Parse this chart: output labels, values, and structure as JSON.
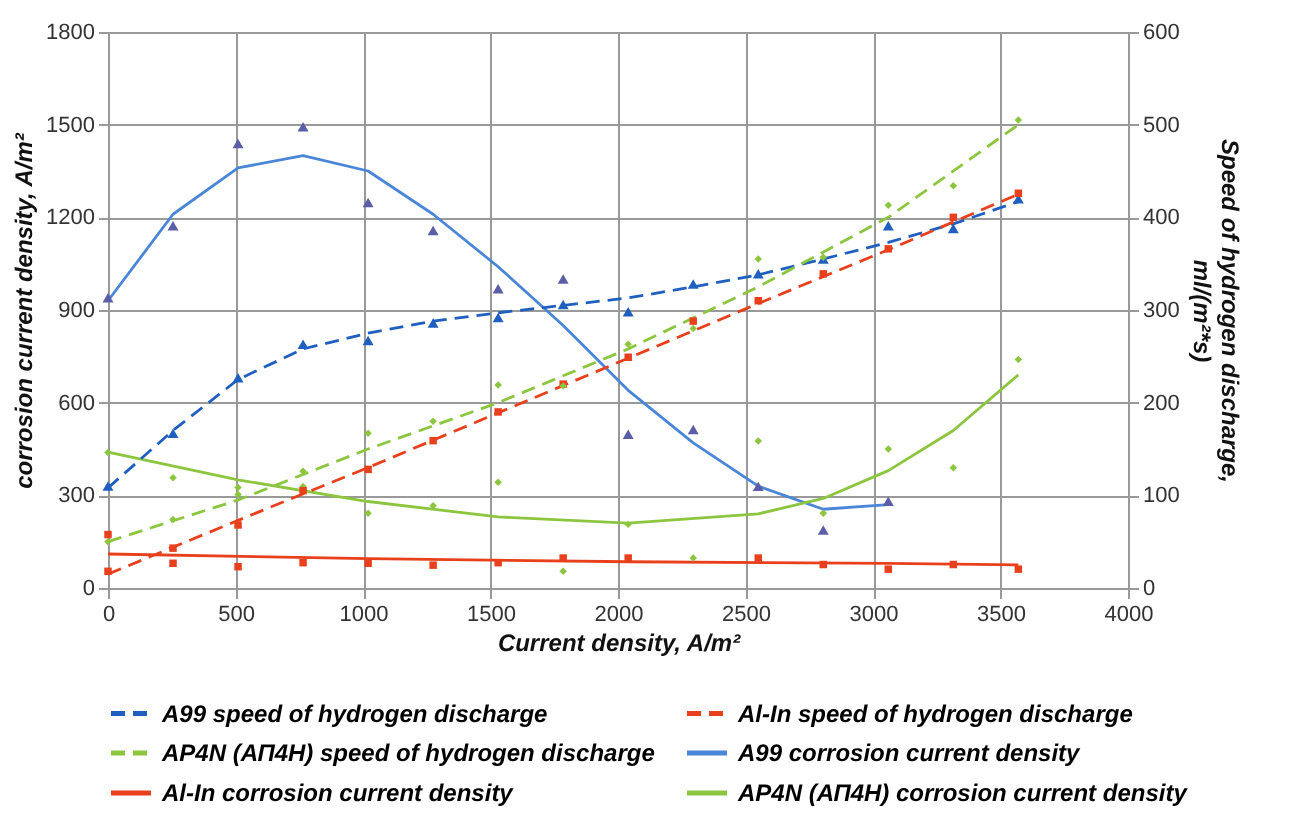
{
  "chart_data": {
    "type": "line",
    "xlabel": "Current density, A/m²",
    "ylabel": "corrosion current density, A/m²",
    "y2label": "Speed of hydrogen discharge,\nml/(m²*s)",
    "xlim": [
      0,
      4000
    ],
    "xticks": [
      0,
      500,
      1000,
      1500,
      2000,
      2500,
      3000,
      3500,
      4000
    ],
    "ylim": [
      0,
      1800
    ],
    "yticks": [
      0,
      300,
      600,
      900,
      1200,
      1500,
      1800
    ],
    "y2lim": [
      0,
      600
    ],
    "y2ticks": [
      0,
      100,
      200,
      300,
      400,
      500,
      600
    ],
    "grid": true,
    "legend": "bottom",
    "series": [
      {
        "name": "A99 speed of hydrogen discharge",
        "axis": "y2",
        "line_style": "dashed",
        "color": "#1f5fbf",
        "x": [
          0,
          255,
          510,
          765,
          1020,
          1275,
          1530,
          1785,
          2040,
          2295,
          2550,
          2805,
          3060,
          3315,
          3570
        ],
        "values": [
          108,
          170,
          225,
          258,
          275,
          288,
          297,
          305,
          313,
          325,
          338,
          355,
          373,
          393,
          417
        ]
      },
      {
        "name": "Al-In speed of hydrogen discharge",
        "axis": "y2",
        "line_style": "dashed",
        "color": "#e8401c",
        "x": [
          0,
          510,
          1020,
          1530,
          2040,
          2550,
          3060,
          3570
        ],
        "values": [
          15,
          73,
          130,
          189,
          248,
          307,
          365,
          425
        ]
      },
      {
        "name": "AP4N (АП4Н) speed of hydrogen discharge",
        "axis": "y2",
        "line_style": "dashed",
        "color": "#8cc63f",
        "x": [
          0,
          510,
          1020,
          1530,
          2040,
          2550,
          3060,
          3570
        ],
        "values": [
          50,
          95,
          150,
          200,
          258,
          325,
          400,
          500
        ]
      },
      {
        "name": "A99 corrosion current density",
        "axis": "y",
        "line_style": "solid",
        "color": "#4a86d8",
        "x": [
          0,
          255,
          510,
          765,
          1020,
          1275,
          1530,
          1785,
          2040,
          2295,
          2550,
          2805,
          3060
        ],
        "values": [
          930,
          1210,
          1360,
          1400,
          1350,
          1210,
          1040,
          850,
          640,
          470,
          330,
          255,
          270
        ]
      },
      {
        "name": "Al-In corrosion current density",
        "axis": "y",
        "line_style": "solid",
        "color": "#e8401c",
        "x": [
          0,
          1020,
          2040,
          3060,
          3570
        ],
        "values": [
          110,
          95,
          85,
          80,
          75
        ]
      },
      {
        "name": "AP4N (АП4Н) corrosion current density",
        "axis": "y",
        "line_style": "solid",
        "color": "#8cc63f",
        "x": [
          0,
          510,
          1020,
          1530,
          2040,
          2550,
          2805,
          3060,
          3315,
          3570
        ],
        "values": [
          440,
          350,
          280,
          230,
          210,
          240,
          290,
          380,
          510,
          690
        ]
      },
      {
        "type": "scatter",
        "axis": "y2",
        "marker": "triangle",
        "color": "#1f5fbf",
        "x": [
          0,
          255,
          510,
          765,
          1020,
          1275,
          1530,
          1785,
          2040,
          2295,
          2550,
          2805,
          3060,
          3315,
          3570
        ],
        "values": [
          110,
          167,
          227,
          263,
          267,
          286,
          292,
          306,
          298,
          328,
          339,
          355,
          391,
          388,
          420
        ]
      },
      {
        "type": "scatter",
        "axis": "y2",
        "marker": "square",
        "color": "#e8401c",
        "x": [
          0,
          255,
          510,
          765,
          1020,
          1275,
          1530,
          1785,
          2040,
          2295,
          2550,
          2805,
          3060,
          3315,
          3570
        ],
        "values": [
          18,
          43,
          68,
          105,
          128,
          159,
          190,
          220,
          249,
          288,
          310,
          339,
          366,
          400,
          426
        ]
      },
      {
        "type": "scatter",
        "axis": "y2",
        "marker": "diamond",
        "color": "#8cc63f",
        "x": [
          0,
          255,
          510,
          765,
          1020,
          1275,
          1530,
          1785,
          2040,
          2295,
          2550,
          2805,
          3060,
          3315,
          3570
        ],
        "values": [
          50,
          74,
          101,
          126,
          167,
          180,
          219,
          218,
          263,
          280,
          355,
          357,
          413,
          434,
          505
        ]
      },
      {
        "type": "scatter",
        "axis": "y",
        "marker": "triangle",
        "color": "#5b5ea6",
        "x": [
          0,
          255,
          510,
          765,
          1020,
          1275,
          1530,
          1785,
          2040,
          2295,
          2550,
          2805,
          3060
        ],
        "values": [
          940,
          1173,
          1439,
          1493,
          1248,
          1157,
          969,
          1000,
          498,
          513,
          329,
          188,
          281
        ]
      },
      {
        "type": "scatter",
        "axis": "y",
        "marker": "square",
        "color": "#e8401c",
        "x": [
          0,
          255,
          510,
          765,
          1020,
          1275,
          1530,
          1785,
          2040,
          2550,
          2805,
          3060,
          3315,
          3570
        ],
        "values": [
          173,
          80,
          69,
          82,
          80,
          74,
          82,
          97,
          97,
          97,
          76,
          61,
          76,
          61
        ]
      },
      {
        "type": "scatter",
        "axis": "y",
        "marker": "diamond",
        "color": "#8cc63f",
        "x": [
          0,
          255,
          510,
          765,
          1020,
          1275,
          1530,
          1785,
          2040,
          2295,
          2550,
          2805,
          3060,
          3315,
          3570
        ],
        "values": [
          439,
          357,
          325,
          329,
          242,
          266,
          342,
          54,
          206,
          97,
          476,
          242,
          450,
          389,
          740
        ]
      }
    ]
  }
}
